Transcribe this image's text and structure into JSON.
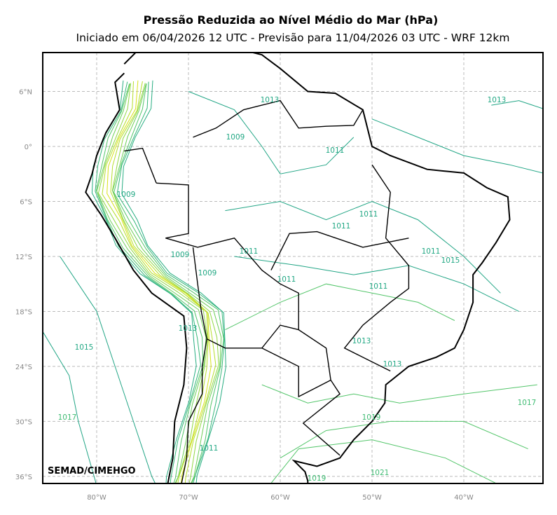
{
  "map": {
    "title": "Pressão Reduzida ao Nível Médio do Mar (hPa)",
    "subtitle": "Iniciado em 06/04/2026 12 UTC - Previsão para 11/04/2026 03 UTC - WRF 12km",
    "lat_ticks": [
      {
        "value": 6,
        "label": "6°N"
      },
      {
        "value": 0,
        "label": "0°"
      },
      {
        "value": -6,
        "label": "6°S"
      },
      {
        "value": -12,
        "label": "12°S"
      },
      {
        "value": -18,
        "label": "18°S"
      },
      {
        "value": -24,
        "label": "24°S"
      },
      {
        "value": -30,
        "label": "30°S"
      },
      {
        "value": -36,
        "label": "36°S"
      }
    ],
    "lon_ticks": [
      {
        "value": -80,
        "label": "80°W"
      },
      {
        "value": -70,
        "label": "70°W"
      },
      {
        "value": -60,
        "label": "60°W"
      },
      {
        "value": -50,
        "label": "50°W"
      },
      {
        "value": -40,
        "label": "40°W"
      }
    ],
    "contour_labels": [
      "1013",
      "1013",
      "1009",
      "1011",
      "1009",
      "1011",
      "1011",
      "1011",
      "1009",
      "1009",
      "1011",
      "1011",
      "1015",
      "1011",
      "1013",
      "1013",
      "1015",
      "1013",
      "1017",
      "1017",
      "1011",
      "1019",
      "1019",
      "1021"
    ],
    "credit": "SEMAD/CIMEHGO"
  }
}
